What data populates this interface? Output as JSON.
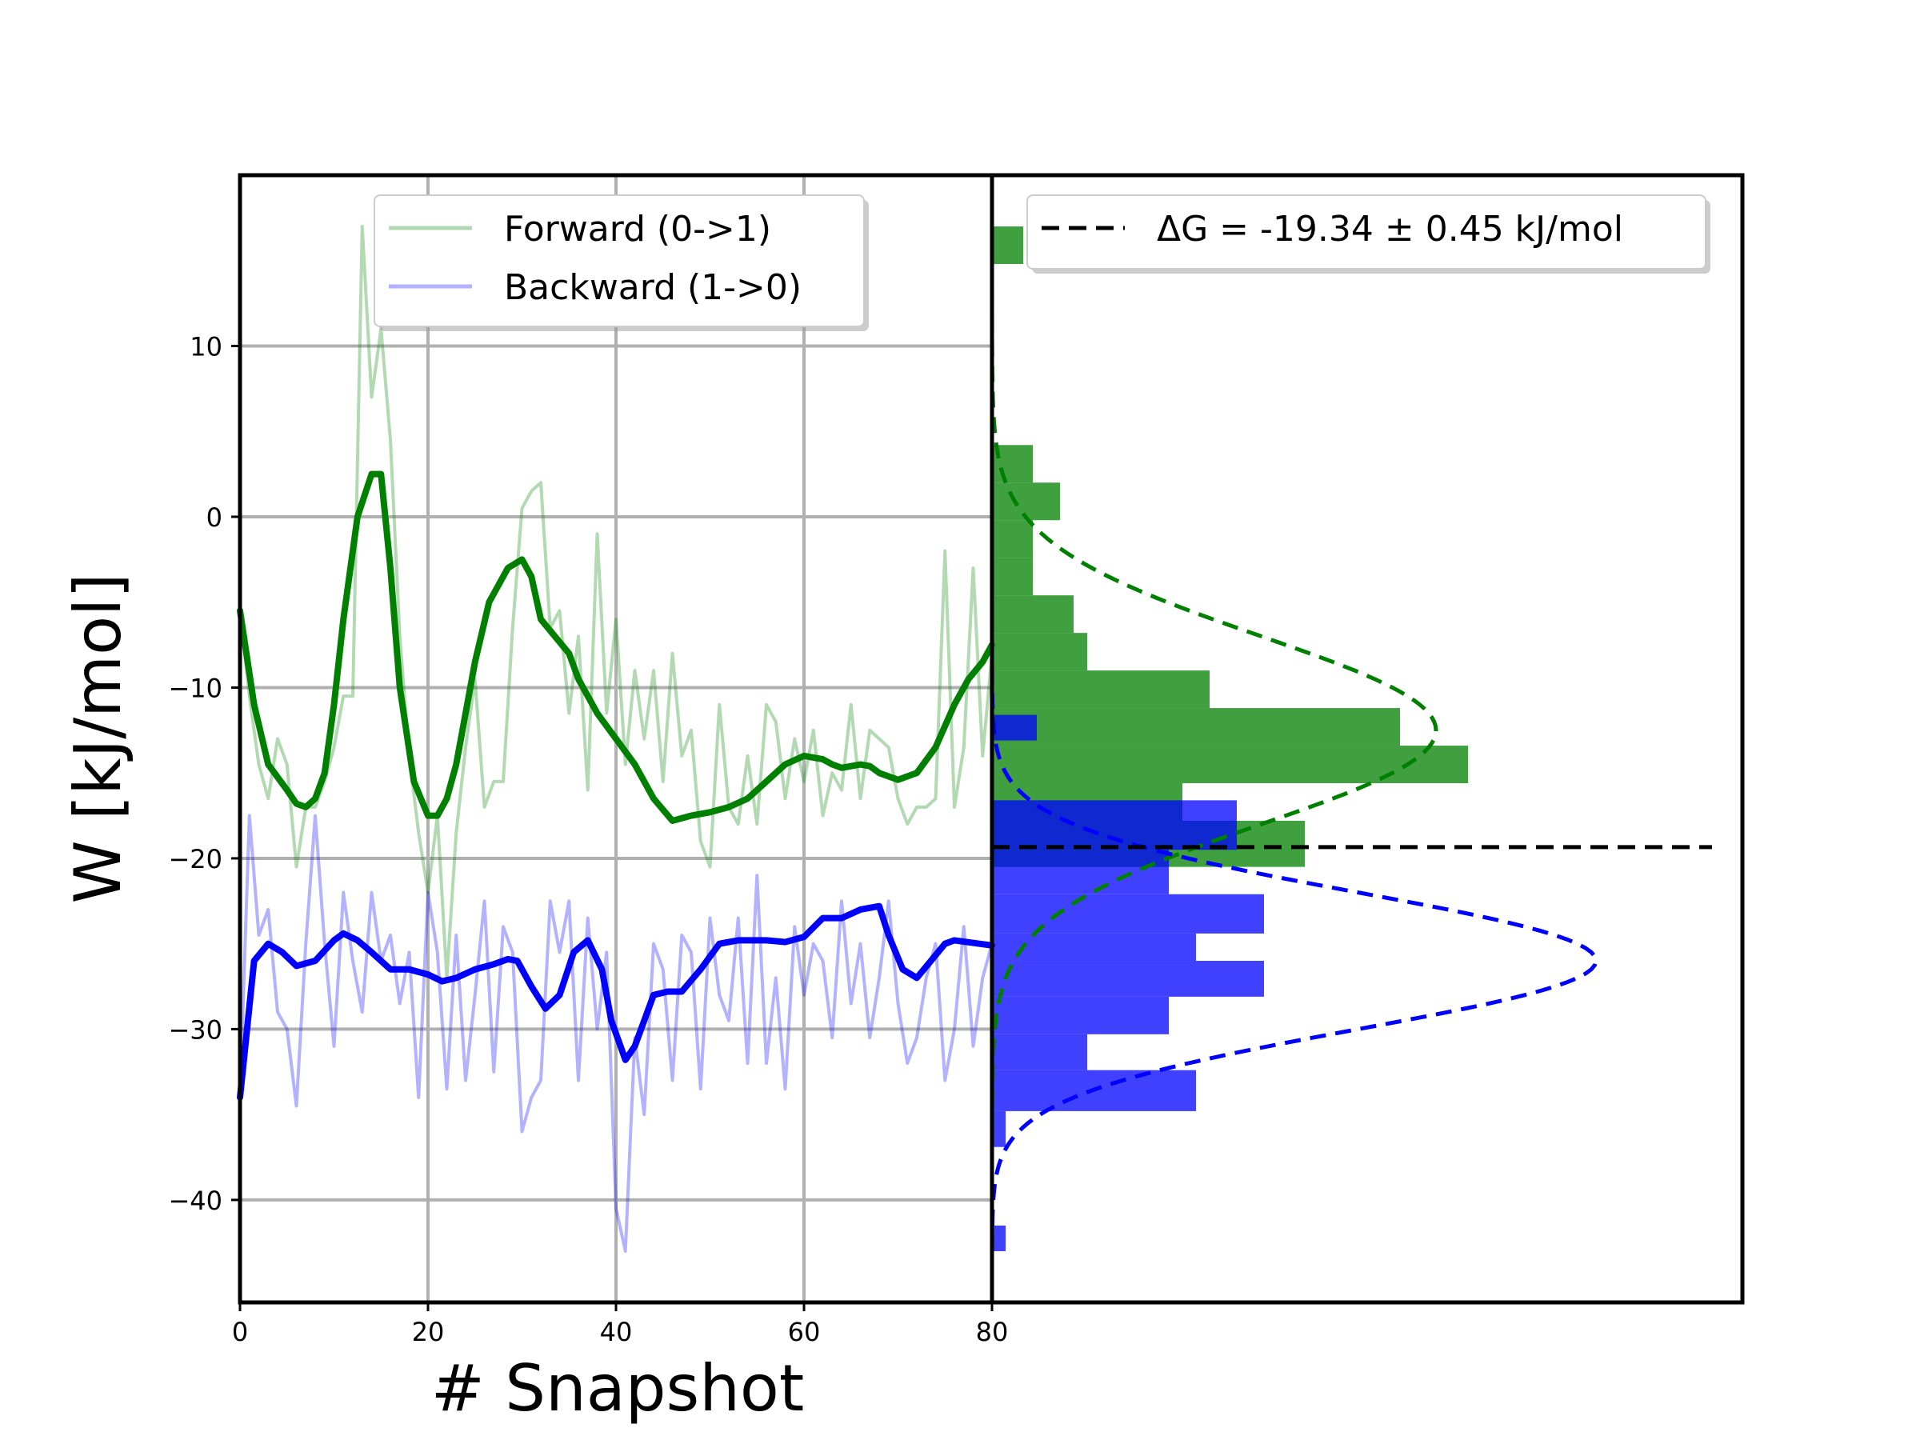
{
  "chart_data": {
    "type": "line",
    "xlabel": "# Snapshot",
    "ylabel": "W [kJ/mol]",
    "xlim": [
      0,
      80
    ],
    "ylim": [
      -46,
      20
    ],
    "x_ticks": [
      0,
      20,
      40,
      60,
      80
    ],
    "y_ticks": [
      10,
      0,
      -10,
      -20,
      -30,
      -40
    ],
    "x_tick_labels": [
      "0",
      "20",
      "40",
      "60",
      "80"
    ],
    "y_tick_labels": [
      "10",
      "0",
      "−10",
      "−20",
      "−30",
      "−40"
    ],
    "grid": true,
    "legend_placement": "top-center",
    "series": [
      {
        "name": "Forward (0->1)",
        "color": "#008000",
        "raw": [
          -5.5,
          -10.5,
          -14.5,
          -16.5,
          -13,
          -14.5,
          -20.5,
          -17,
          -17,
          -15.5,
          -13.5,
          -10.5,
          -10.5,
          17,
          7,
          11,
          4.5,
          -7,
          -14,
          -18.5,
          -22,
          -17.5,
          -27,
          -18.5,
          -13.5,
          -9.5,
          -17,
          -15.5,
          -15.5,
          -6.5,
          0.5,
          1.5,
          2,
          -6.5,
          -5.5,
          -11.5,
          -7,
          -16,
          -1,
          -11.5,
          -6,
          -14.5,
          -9,
          -13,
          -9,
          -15.5,
          -8,
          -14,
          -12.5,
          -19,
          -20.5,
          -11,
          -17,
          -18,
          -14,
          -18,
          -11,
          -12,
          -16.5,
          -13,
          -15.5,
          -12.5,
          -17.5,
          -15,
          -16,
          -11,
          -16.5,
          -12.5,
          -13,
          -13.5,
          -16.5,
          -18,
          -17,
          -17,
          -16.5,
          -2,
          -17,
          -13.5,
          -3,
          -14,
          -8
        ],
        "smooth": [
          -5.5,
          -11,
          -14.5,
          -16,
          -16.8,
          -17,
          -16.5,
          -15,
          -11,
          -6,
          0,
          2.5,
          2.5,
          -3,
          -10,
          -15.5,
          -17.5,
          -17.5,
          -16.5,
          -14.5,
          -11.5,
          -8.5,
          -5,
          -3,
          -2.5,
          -3.5,
          -6,
          -7,
          -8,
          -9.5,
          -11.5,
          -13,
          -14.5,
          -16.5,
          -17.8,
          -17.5,
          -17.3,
          -17,
          -16.5,
          -15.5,
          -14.5,
          -14,
          -14.2,
          -14.5,
          -14.7,
          -14.5,
          -14.6,
          -15,
          -15.4,
          -15,
          -13.5,
          -11,
          -9.5,
          -8.5,
          -7.5
        ],
        "smooth_x": [
          0,
          1.5,
          3,
          5,
          6,
          7,
          8,
          9,
          10,
          11,
          12.5,
          14,
          15,
          16,
          17,
          18.5,
          20,
          21,
          22,
          23,
          24,
          25,
          26.5,
          28.5,
          30,
          31,
          32,
          33.5,
          35,
          36,
          38,
          40,
          42,
          44,
          46,
          48,
          50,
          52,
          54,
          56,
          58,
          60,
          62,
          63,
          64,
          66,
          67,
          68,
          70,
          72,
          74,
          76,
          77.5,
          79,
          80
        ]
      },
      {
        "name": "Backward (1->0)",
        "color": "#0000ff",
        "raw": [
          -34,
          -17.5,
          -24.5,
          -23,
          -29,
          -30,
          -34.5,
          -25,
          -17.5,
          -25,
          -31,
          -22,
          -26,
          -29,
          -22,
          -26,
          -24.5,
          -28.5,
          -25.5,
          -34,
          -22,
          -25.5,
          -33.5,
          -24.5,
          -33,
          -28,
          -22.5,
          -32.5,
          -24,
          -25.5,
          -36,
          -34,
          -33,
          -22.5,
          -25.5,
          -22.5,
          -33,
          -23.5,
          -30,
          -25.5,
          -40.5,
          -43,
          -30.5,
          -35,
          -25,
          -26.5,
          -33,
          -24.5,
          -25.5,
          -33.5,
          -23.5,
          -28,
          -29.5,
          -23.5,
          -32,
          -21,
          -32,
          -27,
          -33.5,
          -24,
          -28,
          -25,
          -26,
          -30.5,
          -22.5,
          -28.5,
          -25,
          -30.5,
          -27,
          -22.5,
          -28.5,
          -32,
          -30.5,
          -27,
          -25,
          -33,
          -30,
          -24,
          -31,
          -27,
          -25
        ],
        "smooth": [
          -34,
          -26,
          -25,
          -25.5,
          -26.3,
          -26,
          -24.8,
          -24.4,
          -24.8,
          -25.5,
          -26.5,
          -26.5,
          -26.8,
          -27.2,
          -27,
          -26.5,
          -26.2,
          -25.9,
          -26,
          -27.5,
          -28.8,
          -28,
          -25.5,
          -24.8,
          -26.5,
          -29.5,
          -31.8,
          -31,
          -28,
          -27.8,
          -27.8,
          -26.5,
          -25,
          -24.8,
          -24.8,
          -24.9,
          -24.6,
          -23.5,
          -23.5,
          -23,
          -22.8,
          -24.5,
          -26.5,
          -27,
          -26,
          -25,
          -24.8,
          -25.1
        ],
        "smooth_x": [
          0,
          1.5,
          3,
          4.5,
          6,
          8,
          10,
          11,
          12.5,
          14,
          16,
          18,
          20,
          21.5,
          23,
          25,
          27,
          28.5,
          29.5,
          31,
          32.5,
          34,
          35.5,
          37,
          38.5,
          39.5,
          41,
          42,
          44,
          45.5,
          47,
          49,
          51,
          53,
          56,
          58,
          60,
          62,
          64,
          66,
          68,
          69,
          70.5,
          72,
          73.5,
          75,
          76,
          80
        ]
      }
    ],
    "histogram": {
      "orientation": "horizontal",
      "forward": {
        "color": "#008000",
        "bin_edges": [
          -20.5,
          -17.8,
          -15.6,
          -13.4,
          -11.2,
          -9,
          -6.8,
          -4.6,
          -2.4,
          -0.2,
          2,
          4.2,
          17
        ],
        "counts": [
          23,
          14,
          35,
          30,
          16,
          7,
          6,
          3,
          3,
          5,
          3,
          0
        ],
        "extra_bin": {
          "range": [
            14.8,
            17
          ],
          "count": 1
        }
      },
      "backward": {
        "color": "#0000ff",
        "bin_edges": [
          -43,
          -41.5,
          -36.9,
          -34.8,
          -32.4,
          -30.3,
          -28.1,
          -26,
          -24.4,
          -22.1,
          -19.5,
          -16.6
        ],
        "counts": [
          1,
          0,
          1,
          15,
          7,
          13,
          20,
          15,
          20,
          13,
          18
        ],
        "extra_bin": {
          "range": [
            -13.1,
            -11.6
          ],
          "count": 2
        }
      },
      "gauss_forward": {
        "mean": -12.5,
        "sd": 5.5
      },
      "gauss_backward": {
        "mean": -26,
        "sd": 4
      }
    },
    "delta_g": {
      "label": "ΔG = -19.34 ± 0.45 kJ/mol",
      "value": -19.34,
      "error": 0.45,
      "units": "kJ/mol"
    }
  }
}
